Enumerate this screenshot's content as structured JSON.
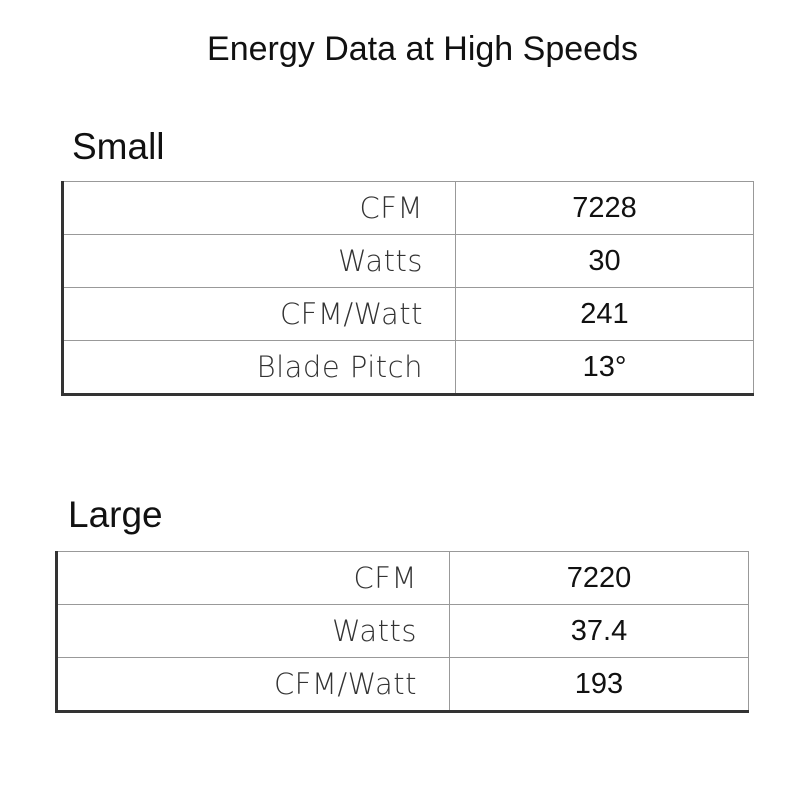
{
  "title": "Energy Data at High Speeds",
  "tables": [
    {
      "heading": "Small",
      "rows": [
        [
          "CFM",
          "7228"
        ],
        [
          "Watts",
          "30"
        ],
        [
          "CFM/Watt",
          "241"
        ],
        [
          "Blade Pitch",
          "13°"
        ]
      ]
    },
    {
      "heading": "Large",
      "rows": [
        [
          "CFM",
          "7220"
        ],
        [
          "Watts",
          "37.4"
        ],
        [
          "CFM/Watt",
          "193"
        ]
      ]
    }
  ]
}
